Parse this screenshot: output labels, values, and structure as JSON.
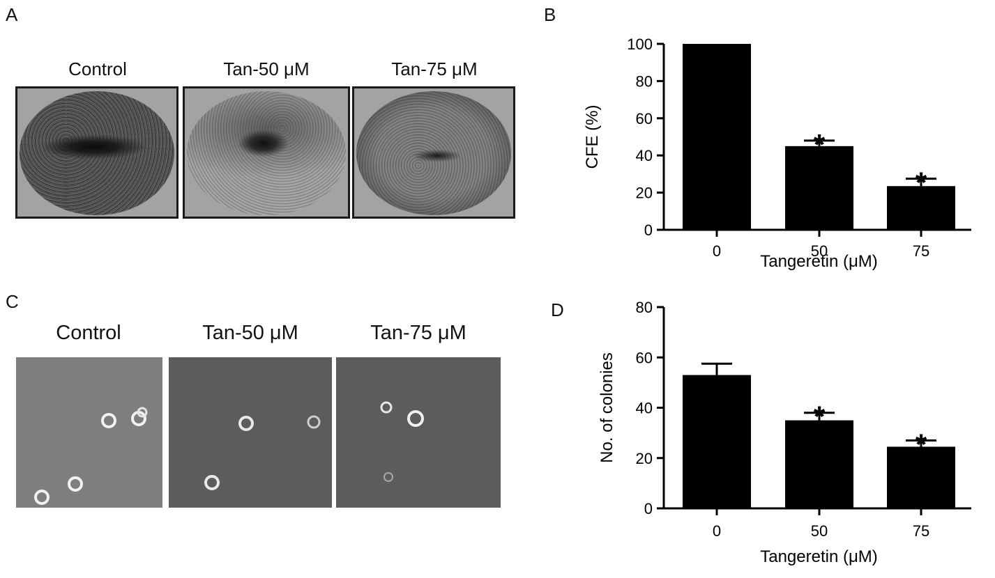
{
  "panels": {
    "a": {
      "letter": "A",
      "labels": [
        "Control",
        "Tan-50 μM",
        "Tan-75 μM"
      ]
    },
    "b": {
      "letter": "B"
    },
    "c": {
      "letter": "C",
      "labels": [
        "Control",
        "Tan-50 μM",
        "Tan-75 μM"
      ]
    },
    "d": {
      "letter": "D"
    }
  },
  "chart_data": [
    {
      "panel": "B",
      "type": "bar",
      "categories": [
        "0",
        "50",
        "75"
      ],
      "values": [
        100,
        45,
        23.5
      ],
      "errors": [
        0,
        3,
        4
      ],
      "significance": [
        "",
        "*",
        "*"
      ],
      "xlabel": "Tangeretin (μM)",
      "ylabel": "CFE (%)",
      "ylim": [
        0,
        100
      ],
      "yticks": [
        0,
        20,
        40,
        60,
        80,
        100
      ],
      "bar_color": "#000000",
      "grid": false
    },
    {
      "panel": "D",
      "type": "bar",
      "categories": [
        "0",
        "50",
        "75"
      ],
      "values": [
        53,
        35,
        24.5
      ],
      "errors": [
        4.5,
        3,
        2.5
      ],
      "significance": [
        "",
        "*",
        "*"
      ],
      "xlabel": "Tangeretin (μM)",
      "ylabel": "No. of colonies",
      "ylim": [
        0,
        80
      ],
      "yticks": [
        0,
        20,
        40,
        60,
        80
      ],
      "bar_color": "#000000",
      "grid": false
    }
  ]
}
